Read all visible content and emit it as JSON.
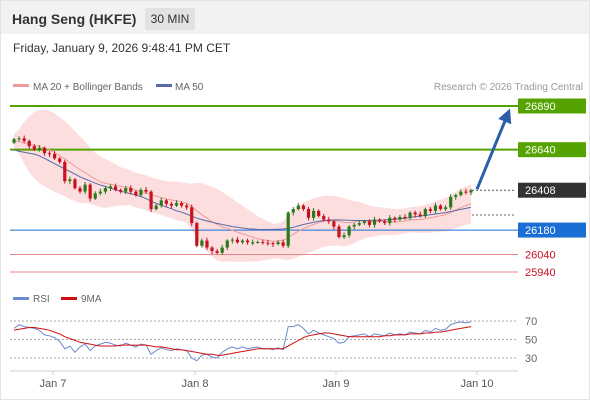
{
  "header": {
    "title": "Hang Seng (HKFE)",
    "timeframe": "30 MIN"
  },
  "timestamp": "Friday, January 9, 2026 9:48:41 PM CET",
  "legend": {
    "ma20": "MA 20 + Bollinger Bands",
    "ma50": "MA 50",
    "rsi": "RSI",
    "rsi_ma": "9MA"
  },
  "copyright": "Research © 2026 Trading Central",
  "colors": {
    "up": "#2a7a1a",
    "down": "#c8101e",
    "green_level": "#55a300",
    "blue_level": "#1a6fd4",
    "red_level": "#e88a8a",
    "bollinger": "#fddede",
    "ma20": "#ef9a9a",
    "ma50": "#5a6aa8",
    "rsi": "#6c8ad0",
    "rsi_ma": "#d01010",
    "arrow": "#2b5fa8",
    "last_price": "#333333"
  },
  "chart_data": [
    {
      "type": "candlestick",
      "name": "price",
      "x_ticks": [
        "Jan 7",
        "Jan 8",
        "Jan 9",
        "Jan 10"
      ],
      "ylim": [
        25880,
        26930
      ],
      "levels": [
        {
          "value": 26890,
          "label": "26890",
          "kind": "resistance"
        },
        {
          "value": 26640,
          "label": "26640",
          "kind": "resistance"
        },
        {
          "value": 26408,
          "label": "26408",
          "kind": "last"
        },
        {
          "value": 26180,
          "label": "26180",
          "kind": "pivot"
        },
        {
          "value": 26040,
          "label": "26040",
          "kind": "support"
        },
        {
          "value": 25940,
          "label": "25940",
          "kind": "support"
        }
      ],
      "close": [
        26700,
        26705,
        26690,
        26660,
        26640,
        26650,
        26620,
        26615,
        26590,
        26570,
        26460,
        26470,
        26420,
        26400,
        26440,
        26360,
        26390,
        26400,
        26420,
        26430,
        26410,
        26400,
        26420,
        26400,
        26380,
        26410,
        26400,
        26300,
        26320,
        26350,
        26330,
        26320,
        26335,
        26320,
        26310,
        26220,
        26090,
        26120,
        26080,
        26060,
        26050,
        26080,
        26120,
        26125,
        26110,
        26120,
        26110,
        26110,
        26112,
        26108,
        26105,
        26100,
        26110,
        26090,
        26280,
        26300,
        26320,
        26300,
        26250,
        26290,
        26260,
        26240,
        26230,
        26200,
        26140,
        26150,
        26200,
        26210,
        26220,
        26230,
        26210,
        26240,
        26230,
        26220,
        26250,
        26240,
        26255,
        26250,
        26280,
        26270,
        26260,
        26300,
        26290,
        26320,
        26300,
        26310,
        26370,
        26380,
        26400,
        26395,
        26408
      ],
      "ma50": [
        26640,
        26630,
        26625,
        26620,
        26615,
        26605,
        26590,
        26575,
        26560,
        26545,
        26530,
        26515,
        26500,
        26485,
        26472,
        26460,
        26448,
        26438,
        26430,
        26420,
        26410,
        26402,
        26395,
        26388,
        26380,
        26372,
        26360,
        26345,
        26333,
        26322,
        26312,
        26302,
        26290,
        26282,
        26272,
        26260,
        26248,
        26240,
        26232,
        26225,
        26218,
        26212,
        26206,
        26200,
        26196,
        26192,
        26188,
        26186,
        26184,
        26183,
        26183,
        26184,
        26185,
        26186,
        26190,
        26196,
        26204,
        26212,
        26218,
        26224,
        26230,
        26234,
        26236,
        26238,
        26238,
        26237,
        26236,
        26235,
        26235,
        26235,
        26235,
        26236,
        26237,
        26238,
        26240,
        26242,
        26245,
        26248,
        26252,
        26256,
        26260,
        26264,
        26268,
        26272,
        26276,
        26280,
        26286,
        26292,
        26298,
        26304,
        26310
      ],
      "ma20": [
        26690,
        26686,
        26680,
        26672,
        26665,
        26658,
        26650,
        26638,
        26623,
        26606,
        26588,
        26566,
        26546,
        26526,
        26510,
        26490,
        26472,
        26456,
        26447,
        26442,
        26437,
        26430,
        26428,
        26421,
        26408,
        26402,
        26394,
        26383,
        26374,
        26366,
        26358,
        26352,
        26348,
        26342,
        26334,
        26315,
        26290,
        26268,
        26248,
        26228,
        26212,
        26198,
        26190,
        26180,
        26168,
        26158,
        26150,
        26140,
        26130,
        26125,
        26120,
        26116,
        26118,
        26120,
        26138,
        26156,
        26173,
        26190,
        26200,
        26212,
        26222,
        26230,
        26233,
        26233,
        26230,
        26224,
        26222,
        26226,
        26232,
        26230,
        26230,
        26228,
        26230,
        26230,
        26228,
        26226,
        26228,
        26232,
        26238,
        26240,
        26240,
        26244,
        26250,
        26256,
        26262,
        26268,
        26280,
        26295,
        26308,
        26320,
        26330
      ],
      "bb_width": [
        40,
        70,
        120,
        160,
        190,
        210,
        220,
        225,
        225,
        220,
        215,
        210,
        200,
        190,
        175,
        160,
        150,
        145,
        140,
        130,
        120,
        110,
        105,
        100,
        100,
        100,
        100,
        100,
        100,
        100,
        102,
        105,
        110,
        112,
        115,
        130,
        160,
        180,
        190,
        200,
        205,
        200,
        190,
        180,
        170,
        160,
        150,
        140,
        130,
        120,
        110,
        100,
        100,
        110,
        130,
        140,
        145,
        150,
        150,
        150,
        148,
        146,
        144,
        142,
        140,
        138,
        130,
        120,
        110,
        100,
        90,
        85,
        80,
        78,
        76,
        74,
        72,
        72,
        72,
        74,
        76,
        80,
        84,
        88,
        92,
        96,
        100,
        104,
        108,
        110,
        112
      ],
      "forecast": {
        "from": 26408,
        "to": 26890
      }
    },
    {
      "type": "line",
      "name": "rsi",
      "ylim": [
        20,
        80
      ],
      "y_ticks": [
        70,
        50,
        30
      ],
      "series": [
        {
          "name": "RSI",
          "values": [
            62,
            66,
            64,
            63,
            62,
            60,
            55,
            54,
            52,
            48,
            40,
            43,
            36,
            42,
            45,
            38,
            43,
            45,
            47,
            46,
            44,
            43,
            46,
            44,
            42,
            45,
            44,
            34,
            38,
            41,
            39,
            38,
            40,
            39,
            38,
            30,
            27,
            33,
            34,
            31,
            30,
            36,
            40,
            42,
            40,
            42,
            40,
            41,
            42,
            40,
            40,
            39,
            41,
            39,
            64,
            64,
            66,
            62,
            56,
            60,
            57,
            55,
            53,
            51,
            46,
            47,
            53,
            54,
            55,
            56,
            53,
            56,
            55,
            54,
            57,
            55,
            56,
            55,
            58,
            57,
            56,
            60,
            58,
            62,
            60,
            61,
            66,
            68,
            69,
            68,
            69
          ]
        },
        {
          "name": "9MA",
          "values": [
            60,
            61,
            62,
            63,
            63,
            62,
            61,
            60,
            58,
            56,
            53,
            51,
            49,
            47,
            46,
            45,
            44,
            43,
            43,
            43,
            43,
            44,
            44,
            44,
            44,
            44,
            44,
            43,
            42,
            42,
            41,
            40,
            39,
            39,
            38,
            37,
            36,
            35,
            34,
            34,
            33,
            33,
            34,
            35,
            36,
            37,
            38,
            39,
            40,
            40,
            40,
            40,
            40,
            40,
            43,
            46,
            49,
            52,
            54,
            55,
            56,
            57,
            57,
            56,
            55,
            54,
            53,
            53,
            53,
            53,
            53,
            53,
            53,
            54,
            54,
            55,
            55,
            55,
            56,
            56,
            56,
            57,
            57,
            58,
            58,
            59,
            60,
            61,
            62,
            63,
            64
          ]
        }
      ]
    }
  ]
}
